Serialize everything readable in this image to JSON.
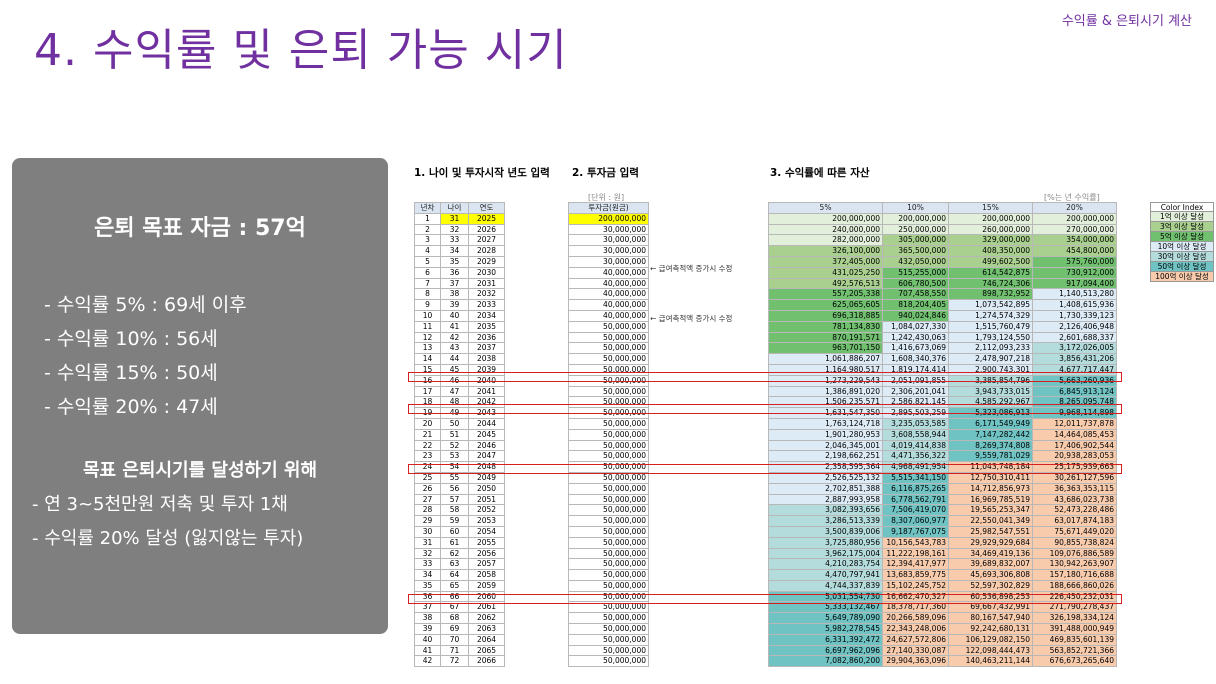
{
  "header": {
    "corner": "수익률 & 은퇴시기 계산",
    "title": "4. 수익률 및 은퇴 가능 시기"
  },
  "panel": {
    "goal": "은퇴 목표 자금 : 57억",
    "rates": [
      "- 수익률   5% : 69세 이후",
      "- 수익률 10% : 56세",
      "- 수익률 15% : 50세",
      "- 수익률 20% : 47세"
    ],
    "plan_heading": "목표 은퇴시기를 달성하기 위해",
    "plans": [
      "- 연 3~5천만원 저축 및 투자 1채",
      "- 수익률 20% 달성 (잃지않는 투자)"
    ]
  },
  "sections": {
    "s1": "1. 나이 및 투자시작 년도 입력",
    "s2": "2. 투자금 입력",
    "s3": "3. 수익률에 따른 자산"
  },
  "units": {
    "money": "[단위 : 원]",
    "rate": "[%는 년 수익률]"
  },
  "notes": {
    "n1": "← 급여축적액 증가시 수정",
    "n2": "← 급여축적액 증가시 수정"
  },
  "colors": {
    "white": "#ffffff",
    "light": "#e2efda",
    "mid": "#a9d08e",
    "green": "#70c070",
    "pale_blue": "#ddebf7",
    "blue": "#b4dcdc",
    "teal": "#6fc3c3",
    "pink": "#f8cbad"
  },
  "table": {
    "headers": [
      "년차",
      "나이",
      "연도",
      "투자금(원금)",
      "5%",
      "10%",
      "15%",
      "20%"
    ],
    "rows": [
      [
        "1",
        "31",
        "2025",
        "200,000,000",
        "200,000,000",
        "200,000,000",
        "200,000,000",
        "200,000,000"
      ],
      [
        "2",
        "32",
        "2026",
        "30,000,000",
        "240,000,000",
        "250,000,000",
        "260,000,000",
        "270,000,000"
      ],
      [
        "3",
        "33",
        "2027",
        "30,000,000",
        "282,000,000",
        "305,000,000",
        "329,000,000",
        "354,000,000"
      ],
      [
        "4",
        "34",
        "2028",
        "30,000,000",
        "326,100,000",
        "365,500,000",
        "408,350,000",
        "454,800,000"
      ],
      [
        "5",
        "35",
        "2029",
        "30,000,000",
        "372,405,000",
        "432,050,000",
        "499,602,500",
        "575,760,000"
      ],
      [
        "6",
        "36",
        "2030",
        "40,000,000",
        "431,025,250",
        "515,255,000",
        "614,542,875",
        "730,912,000"
      ],
      [
        "7",
        "37",
        "2031",
        "40,000,000",
        "492,576,513",
        "606,780,500",
        "746,724,306",
        "917,094,400"
      ],
      [
        "8",
        "38",
        "2032",
        "40,000,000",
        "557,205,338",
        "707,458,550",
        "898,732,952",
        "1,140,513,280"
      ],
      [
        "9",
        "39",
        "2033",
        "40,000,000",
        "625,065,605",
        "818,204,405",
        "1,073,542,895",
        "1,408,615,936"
      ],
      [
        "10",
        "40",
        "2034",
        "40,000,000",
        "696,318,885",
        "940,024,846",
        "1,274,574,329",
        "1,730,339,123"
      ],
      [
        "11",
        "41",
        "2035",
        "50,000,000",
        "781,134,830",
        "1,084,027,330",
        "1,515,760,479",
        "2,126,406,948"
      ],
      [
        "12",
        "42",
        "2036",
        "50,000,000",
        "870,191,571",
        "1,242,430,063",
        "1,793,124,550",
        "2,601,688,337"
      ],
      [
        "13",
        "43",
        "2037",
        "50,000,000",
        "963,701,150",
        "1,416,673,069",
        "2,112,093,233",
        "3,172,026,005"
      ],
      [
        "14",
        "44",
        "2038",
        "50,000,000",
        "1,061,886,207",
        "1,608,340,376",
        "2,478,907,218",
        "3,856,431,206"
      ],
      [
        "15",
        "45",
        "2039",
        "50,000,000",
        "1,164,980,517",
        "1,819,174,414",
        "2,900,743,301",
        "4,677,717,447"
      ],
      [
        "16",
        "46",
        "2040",
        "50,000,000",
        "1,273,229,543",
        "2,051,091,855",
        "3,385,854,796",
        "5,663,260,936"
      ],
      [
        "17",
        "47",
        "2041",
        "50,000,000",
        "1,386,891,020",
        "2,306,201,041",
        "3,943,733,015",
        "6,845,913,124"
      ],
      [
        "18",
        "48",
        "2042",
        "50,000,000",
        "1,506,235,571",
        "2,586,821,145",
        "4,585,292,967",
        "8,265,095,748"
      ],
      [
        "19",
        "49",
        "2043",
        "50,000,000",
        "1,631,547,350",
        "2,895,503,259",
        "5,323,086,913",
        "9,968,114,898"
      ],
      [
        "20",
        "50",
        "2044",
        "50,000,000",
        "1,763,124,718",
        "3,235,053,585",
        "6,171,549,949",
        "12,011,737,878"
      ],
      [
        "21",
        "51",
        "2045",
        "50,000,000",
        "1,901,280,953",
        "3,608,558,944",
        "7,147,282,442",
        "14,464,085,453"
      ],
      [
        "22",
        "52",
        "2046",
        "50,000,000",
        "2,046,345,001",
        "4,019,414,838",
        "8,269,374,808",
        "17,406,902,544"
      ],
      [
        "23",
        "53",
        "2047",
        "50,000,000",
        "2,198,662,251",
        "4,471,356,322",
        "9,559,781,029",
        "20,938,283,053"
      ],
      [
        "24",
        "54",
        "2048",
        "50,000,000",
        "2,358,595,364",
        "4,968,491,954",
        "11,043,748,184",
        "25,175,939,663"
      ],
      [
        "25",
        "55",
        "2049",
        "50,000,000",
        "2,526,525,132",
        "5,515,341,150",
        "12,750,310,411",
        "30,261,127,596"
      ],
      [
        "26",
        "56",
        "2050",
        "50,000,000",
        "2,702,851,388",
        "6,116,875,265",
        "14,712,856,973",
        "36,363,353,115"
      ],
      [
        "27",
        "57",
        "2051",
        "50,000,000",
        "2,887,993,958",
        "6,778,562,791",
        "16,969,785,519",
        "43,686,023,738"
      ],
      [
        "28",
        "58",
        "2052",
        "50,000,000",
        "3,082,393,656",
        "7,506,419,070",
        "19,565,253,347",
        "52,473,228,486"
      ],
      [
        "29",
        "59",
        "2053",
        "50,000,000",
        "3,286,513,339",
        "8,307,060,977",
        "22,550,041,349",
        "63,017,874,183"
      ],
      [
        "30",
        "60",
        "2054",
        "50,000,000",
        "3,500,839,006",
        "9,187,767,075",
        "25,982,547,551",
        "75,671,449,020"
      ],
      [
        "31",
        "61",
        "2055",
        "50,000,000",
        "3,725,880,956",
        "10,156,543,783",
        "29,929,929,684",
        "90,855,738,824"
      ],
      [
        "32",
        "62",
        "2056",
        "50,000,000",
        "3,962,175,004",
        "11,222,198,161",
        "34,469,419,136",
        "109,076,886,589"
      ],
      [
        "33",
        "63",
        "2057",
        "50,000,000",
        "4,210,283,754",
        "12,394,417,977",
        "39,689,832,007",
        "130,942,263,907"
      ],
      [
        "34",
        "64",
        "2058",
        "50,000,000",
        "4,470,797,941",
        "13,683,859,775",
        "45,693,306,808",
        "157,180,716,688"
      ],
      [
        "35",
        "65",
        "2059",
        "50,000,000",
        "4,744,337,839",
        "15,102,245,752",
        "52,597,302,829",
        "188,666,860,026"
      ],
      [
        "36",
        "66",
        "2060",
        "50,000,000",
        "5,031,554,730",
        "16,662,470,327",
        "60,536,898,253",
        "226,450,232,031"
      ],
      [
        "37",
        "67",
        "2061",
        "50,000,000",
        "5,333,132,467",
        "18,378,717,360",
        "69,667,432,991",
        "271,790,278,437"
      ],
      [
        "38",
        "68",
        "2062",
        "50,000,000",
        "5,649,789,090",
        "20,266,589,096",
        "80,167,547,940",
        "326,198,334,124"
      ],
      [
        "39",
        "69",
        "2063",
        "50,000,000",
        "5,982,278,545",
        "22,343,248,006",
        "92,242,680,131",
        "391,488,000,949"
      ],
      [
        "40",
        "70",
        "2064",
        "50,000,000",
        "6,331,392,472",
        "24,627,572,806",
        "106,129,082,150",
        "469,835,601,139"
      ],
      [
        "41",
        "71",
        "2065",
        "50,000,000",
        "6,697,962,096",
        "27,140,330,087",
        "122,098,444,473",
        "563,852,721,366"
      ],
      [
        "42",
        "72",
        "2066",
        "50,000,000",
        "7,082,860,200",
        "29,904,363,096",
        "140,463,211,144",
        "676,673,265,640"
      ]
    ]
  },
  "color_index": {
    "title": "Color Index",
    "items": [
      {
        "label": "1억 이상 달성",
        "color": "#e2efda"
      },
      {
        "label": "3억 이상 달성",
        "color": "#a9d08e"
      },
      {
        "label": "5억 이상 달성",
        "color": "#70c070"
      },
      {
        "label": "10억 이상 달성",
        "color": "#ddebf7"
      },
      {
        "label": "30억 이상 달성",
        "color": "#b4dcdc"
      },
      {
        "label": "50억 이상 달성",
        "color": "#6fc3c3"
      },
      {
        "label": "100억 이상 달성",
        "color": "#f8cbad"
      }
    ]
  }
}
